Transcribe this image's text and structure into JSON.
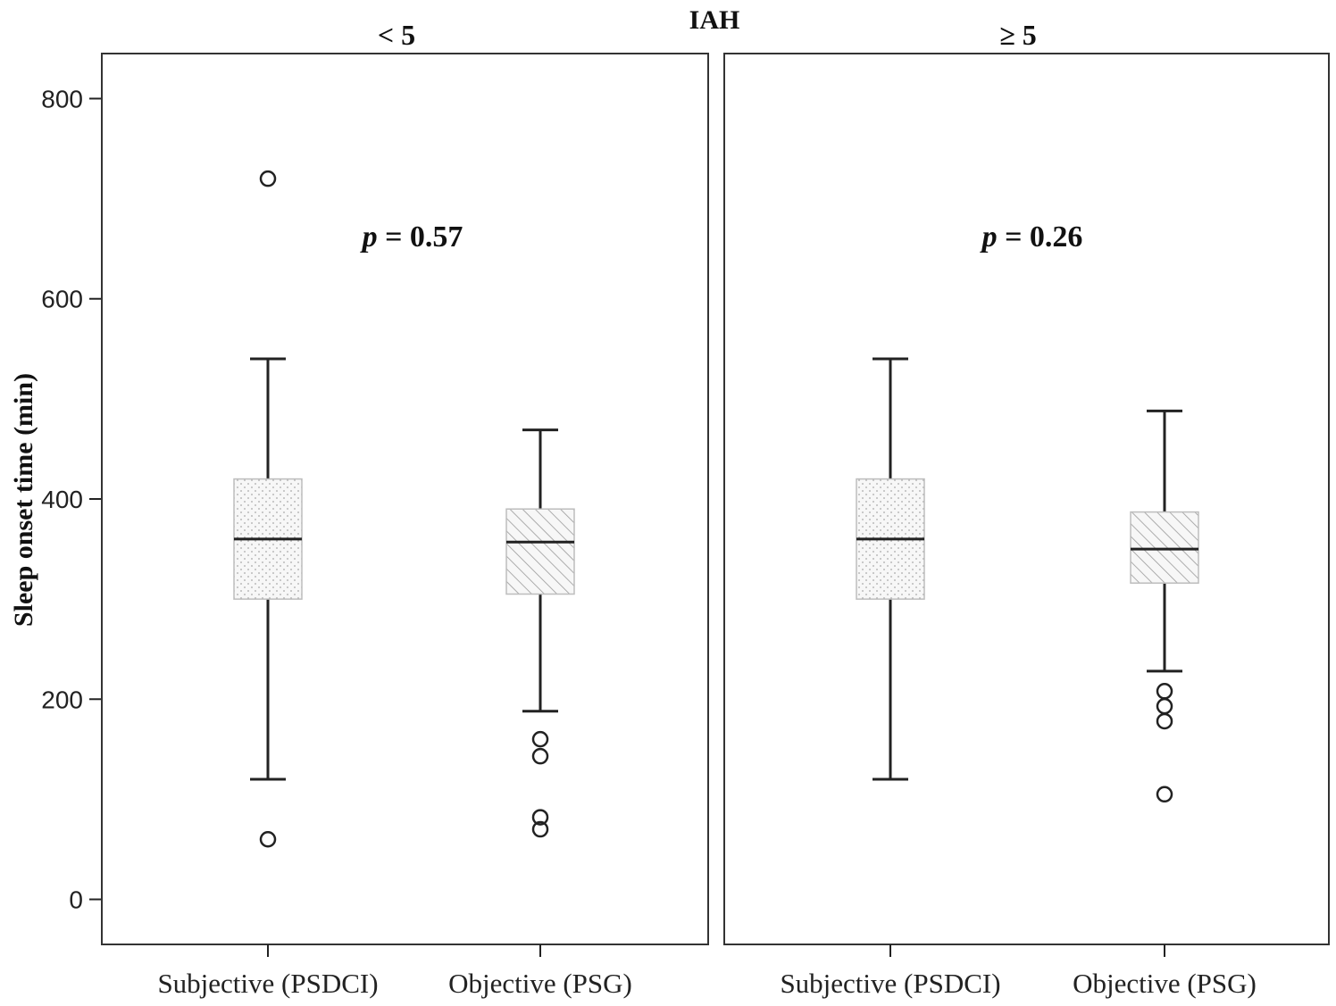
{
  "chart_data": {
    "type": "boxplot",
    "title": "IAH",
    "ylabel": "Sleep onset time (min)",
    "ylim": [
      -45,
      845
    ],
    "yticks": [
      0,
      200,
      400,
      600,
      800
    ],
    "categories": [
      "Subjective (PSDCI)",
      "Objective (PSG)"
    ],
    "panels": [
      {
        "label": "< 5",
        "annotation": "p = 0.57",
        "p_symbol": "p",
        "p_value": "= 0.57",
        "boxes": [
          {
            "category": "Subjective (PSDCI)",
            "whisker_low": 120,
            "q1": 300,
            "median": 360,
            "q3": 420,
            "whisker_high": 540,
            "outliers": [
              720,
              60
            ],
            "pattern": "dots"
          },
          {
            "category": "Objective (PSG)",
            "whisker_low": 188,
            "q1": 305,
            "median": 357,
            "q3": 390,
            "whisker_high": 469,
            "outliers": [
              160,
              143,
              82,
              70
            ],
            "pattern": "hatch"
          }
        ]
      },
      {
        "label": "≥ 5",
        "annotation": "p = 0.26",
        "p_symbol": "p",
        "p_value": "= 0.26",
        "boxes": [
          {
            "category": "Subjective (PSDCI)",
            "whisker_low": 120,
            "q1": 300,
            "median": 360,
            "q3": 420,
            "whisker_high": 540,
            "outliers": [],
            "pattern": "dots"
          },
          {
            "category": "Objective (PSG)",
            "whisker_low": 228,
            "q1": 316,
            "median": 350,
            "q3": 387,
            "whisker_high": 488,
            "outliers": [
              208,
              193,
              178,
              105
            ],
            "pattern": "hatch"
          }
        ]
      }
    ],
    "colors": {
      "box_fill": "#f7f7f7",
      "box_stroke": "#bdbdbd",
      "line": "#222222",
      "pattern": "#9a9a9a"
    }
  }
}
